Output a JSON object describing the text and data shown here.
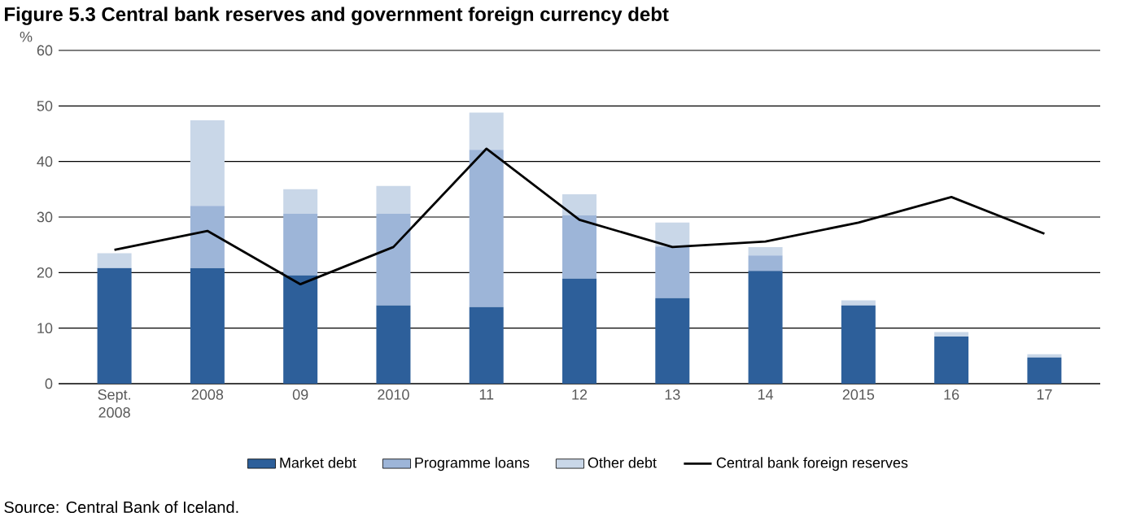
{
  "chart_data": {
    "type": "bar",
    "title": "Figure 5.3    Central bank reserves and government foreign currency debt",
    "ylabel": "%",
    "categories": [
      "Sept. 2008",
      "2008",
      "09",
      "2010",
      "11",
      "12",
      "13",
      "14",
      "2015",
      "16",
      "17"
    ],
    "stacked": true,
    "ylim": [
      0,
      60
    ],
    "yticks": [
      0,
      10,
      20,
      30,
      40,
      50,
      60
    ],
    "grid": "y",
    "legend": "bottom",
    "series": [
      {
        "name": "Market debt",
        "color": "#2d5f9a",
        "values": [
          20.8,
          20.8,
          19.5,
          14.1,
          13.8,
          18.9,
          15.4,
          20.3,
          14.1,
          8.5,
          4.7
        ]
      },
      {
        "name": "Programme loans",
        "color": "#9db5d8",
        "values": [
          0,
          11.2,
          11.1,
          16.5,
          28.3,
          11.4,
          9.3,
          2.8,
          0,
          0,
          0
        ]
      },
      {
        "name": "Other debt",
        "color": "#c9d7e8",
        "values": [
          2.7,
          15.4,
          4.4,
          5.0,
          6.7,
          3.8,
          4.3,
          1.5,
          0.9,
          0.8,
          0.6
        ]
      },
      {
        "name": "Central bank foreign reserves",
        "type": "line",
        "color": "#000000",
        "values": [
          24.1,
          27.5,
          17.9,
          24.6,
          42.3,
          29.5,
          24.6,
          25.6,
          29.0,
          33.6,
          27.0
        ]
      }
    ],
    "annotations": [
      "Source: Central Bank of Iceland."
    ]
  }
}
